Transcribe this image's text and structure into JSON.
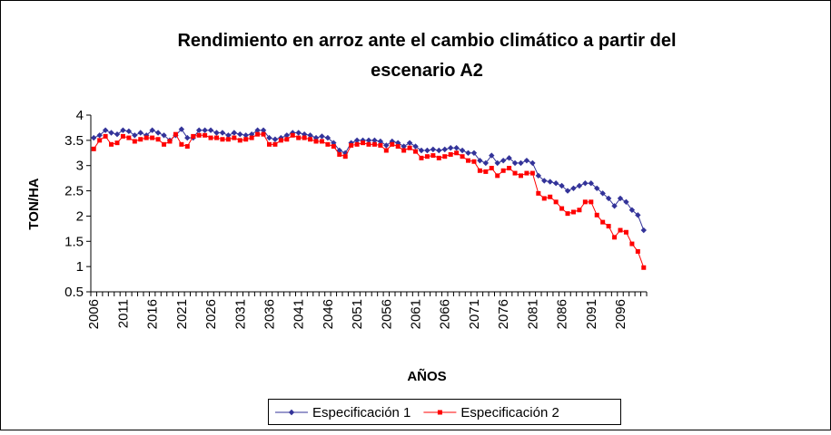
{
  "chart_data": {
    "type": "line",
    "title": "Rendimiento en arroz ante el cambio climático a partir del escenario A2",
    "x_label": "AÑOS",
    "y_label": "TON/HA",
    "categories": [
      "2006",
      null,
      null,
      null,
      null,
      "2011",
      null,
      null,
      null,
      null,
      "2016",
      null,
      null,
      null,
      null,
      "2021",
      null,
      null,
      null,
      null,
      "2026",
      null,
      null,
      null,
      null,
      "2031",
      null,
      null,
      null,
      null,
      "2036",
      null,
      null,
      null,
      null,
      "2041",
      null,
      null,
      null,
      null,
      "2046",
      null,
      null,
      null,
      null,
      "2051",
      null,
      null,
      null,
      null,
      "2056",
      null,
      null,
      null,
      null,
      "2061",
      null,
      null,
      null,
      null,
      "2066",
      null,
      null,
      null,
      null,
      "2071",
      null,
      null,
      null,
      null,
      "2076",
      null,
      null,
      null,
      null,
      "2081",
      null,
      null,
      null,
      null,
      "2086",
      null,
      null,
      null,
      null,
      "2091",
      null,
      null,
      null,
      null,
      "2096",
      null,
      null,
      null,
      null
    ],
    "series": [
      {
        "name": "Especificación 1",
        "color": "#333399",
        "marker": "diamond",
        "values": [
          3.55,
          3.6,
          3.7,
          3.65,
          3.62,
          3.7,
          3.68,
          3.6,
          3.65,
          3.6,
          3.7,
          3.65,
          3.6,
          3.5,
          3.6,
          3.72,
          3.55,
          3.55,
          3.7,
          3.7,
          3.7,
          3.65,
          3.65,
          3.6,
          3.65,
          3.62,
          3.6,
          3.62,
          3.7,
          3.7,
          3.55,
          3.52,
          3.55,
          3.6,
          3.65,
          3.65,
          3.62,
          3.6,
          3.55,
          3.58,
          3.55,
          3.45,
          3.3,
          3.25,
          3.45,
          3.5,
          3.5,
          3.5,
          3.5,
          3.48,
          3.4,
          3.48,
          3.45,
          3.38,
          3.45,
          3.38,
          3.3,
          3.3,
          3.32,
          3.3,
          3.32,
          3.35,
          3.35,
          3.3,
          3.25,
          3.25,
          3.1,
          3.05,
          3.2,
          3.05,
          3.1,
          3.15,
          3.05,
          3.05,
          3.1,
          3.05,
          2.8,
          2.7,
          2.68,
          2.65,
          2.6,
          2.5,
          2.55,
          2.6,
          2.65,
          2.65,
          2.55,
          2.45,
          2.35,
          2.2,
          2.35,
          2.28,
          2.12,
          2.02,
          1.72
        ]
      },
      {
        "name": "Especificación 2",
        "color": "#ff0000",
        "marker": "square",
        "values": [
          3.33,
          3.5,
          3.58,
          3.42,
          3.45,
          3.58,
          3.55,
          3.48,
          3.52,
          3.55,
          3.55,
          3.52,
          3.42,
          3.48,
          3.62,
          3.42,
          3.38,
          3.58,
          3.6,
          3.6,
          3.55,
          3.55,
          3.52,
          3.52,
          3.55,
          3.5,
          3.52,
          3.55,
          3.62,
          3.62,
          3.42,
          3.42,
          3.5,
          3.52,
          3.6,
          3.55,
          3.55,
          3.52,
          3.48,
          3.48,
          3.42,
          3.38,
          3.22,
          3.18,
          3.4,
          3.42,
          3.45,
          3.42,
          3.42,
          3.4,
          3.3,
          3.42,
          3.38,
          3.3,
          3.35,
          3.28,
          3.15,
          3.18,
          3.2,
          3.15,
          3.18,
          3.22,
          3.25,
          3.18,
          3.1,
          3.08,
          2.9,
          2.88,
          2.95,
          2.8,
          2.9,
          2.95,
          2.85,
          2.8,
          2.85,
          2.85,
          2.45,
          2.35,
          2.38,
          2.28,
          2.15,
          2.05,
          2.08,
          2.12,
          2.28,
          2.28,
          2.02,
          1.88,
          1.8,
          1.58,
          1.72,
          1.68,
          1.45,
          1.3,
          0.98
        ]
      }
    ],
    "ylim": [
      0.5,
      4
    ],
    "yticks": [
      0.5,
      1,
      1.5,
      2,
      2.5,
      3,
      3.5,
      4
    ],
    "grid": false,
    "legend": "bottom"
  }
}
